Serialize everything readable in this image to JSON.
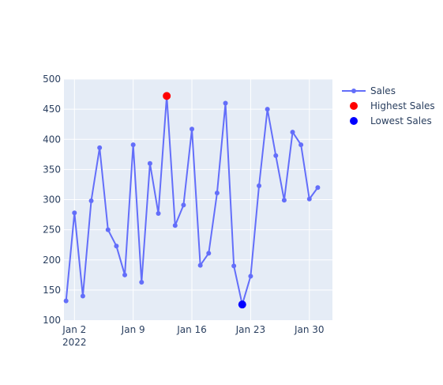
{
  "chart_data": {
    "type": "line",
    "title": "",
    "xlabel": "",
    "ylabel": "",
    "x": [
      "2022-01-01",
      "2022-01-02",
      "2022-01-03",
      "2022-01-04",
      "2022-01-05",
      "2022-01-06",
      "2022-01-07",
      "2022-01-08",
      "2022-01-09",
      "2022-01-10",
      "2022-01-11",
      "2022-01-12",
      "2022-01-13",
      "2022-01-14",
      "2022-01-15",
      "2022-01-16",
      "2022-01-17",
      "2022-01-18",
      "2022-01-19",
      "2022-01-20",
      "2022-01-21",
      "2022-01-22",
      "2022-01-23",
      "2022-01-24",
      "2022-01-25",
      "2022-01-26",
      "2022-01-27",
      "2022-01-28",
      "2022-01-29",
      "2022-01-30",
      "2022-01-31"
    ],
    "xlim": [
      "2021-12-31T18:00",
      "2022-02-01T18:00"
    ],
    "ylim": [
      100,
      500
    ],
    "x_ticks": [
      {
        "date": "2022-01-02",
        "label": "Jan 2",
        "sublabel": "2022"
      },
      {
        "date": "2022-01-09",
        "label": "Jan 9",
        "sublabel": ""
      },
      {
        "date": "2022-01-16",
        "label": "Jan 16",
        "sublabel": ""
      },
      {
        "date": "2022-01-23",
        "label": "Jan 23",
        "sublabel": ""
      },
      {
        "date": "2022-01-30",
        "label": "Jan 30",
        "sublabel": ""
      }
    ],
    "y_ticks": [
      100,
      150,
      200,
      250,
      300,
      350,
      400,
      450,
      500
    ],
    "grid": true,
    "legend_position": "top-right",
    "series": [
      {
        "name": "Sales",
        "mode": "lines+markers",
        "color": "#636efa",
        "values": [
          132,
          278,
          140,
          298,
          386,
          250,
          223,
          175,
          391,
          163,
          360,
          277,
          472,
          257,
          291,
          417,
          191,
          211,
          311,
          460,
          190,
          126,
          173,
          323,
          450,
          373,
          299,
          412,
          391,
          301,
          320
        ]
      },
      {
        "name": "Highest Sales",
        "mode": "markers",
        "color": "#ff0000",
        "points": [
          {
            "x": "2022-01-13",
            "y": 472
          }
        ]
      },
      {
        "name": "Lowest Sales",
        "mode": "markers",
        "color": "#0000ff",
        "points": [
          {
            "x": "2022-01-22",
            "y": 126
          }
        ]
      }
    ]
  }
}
